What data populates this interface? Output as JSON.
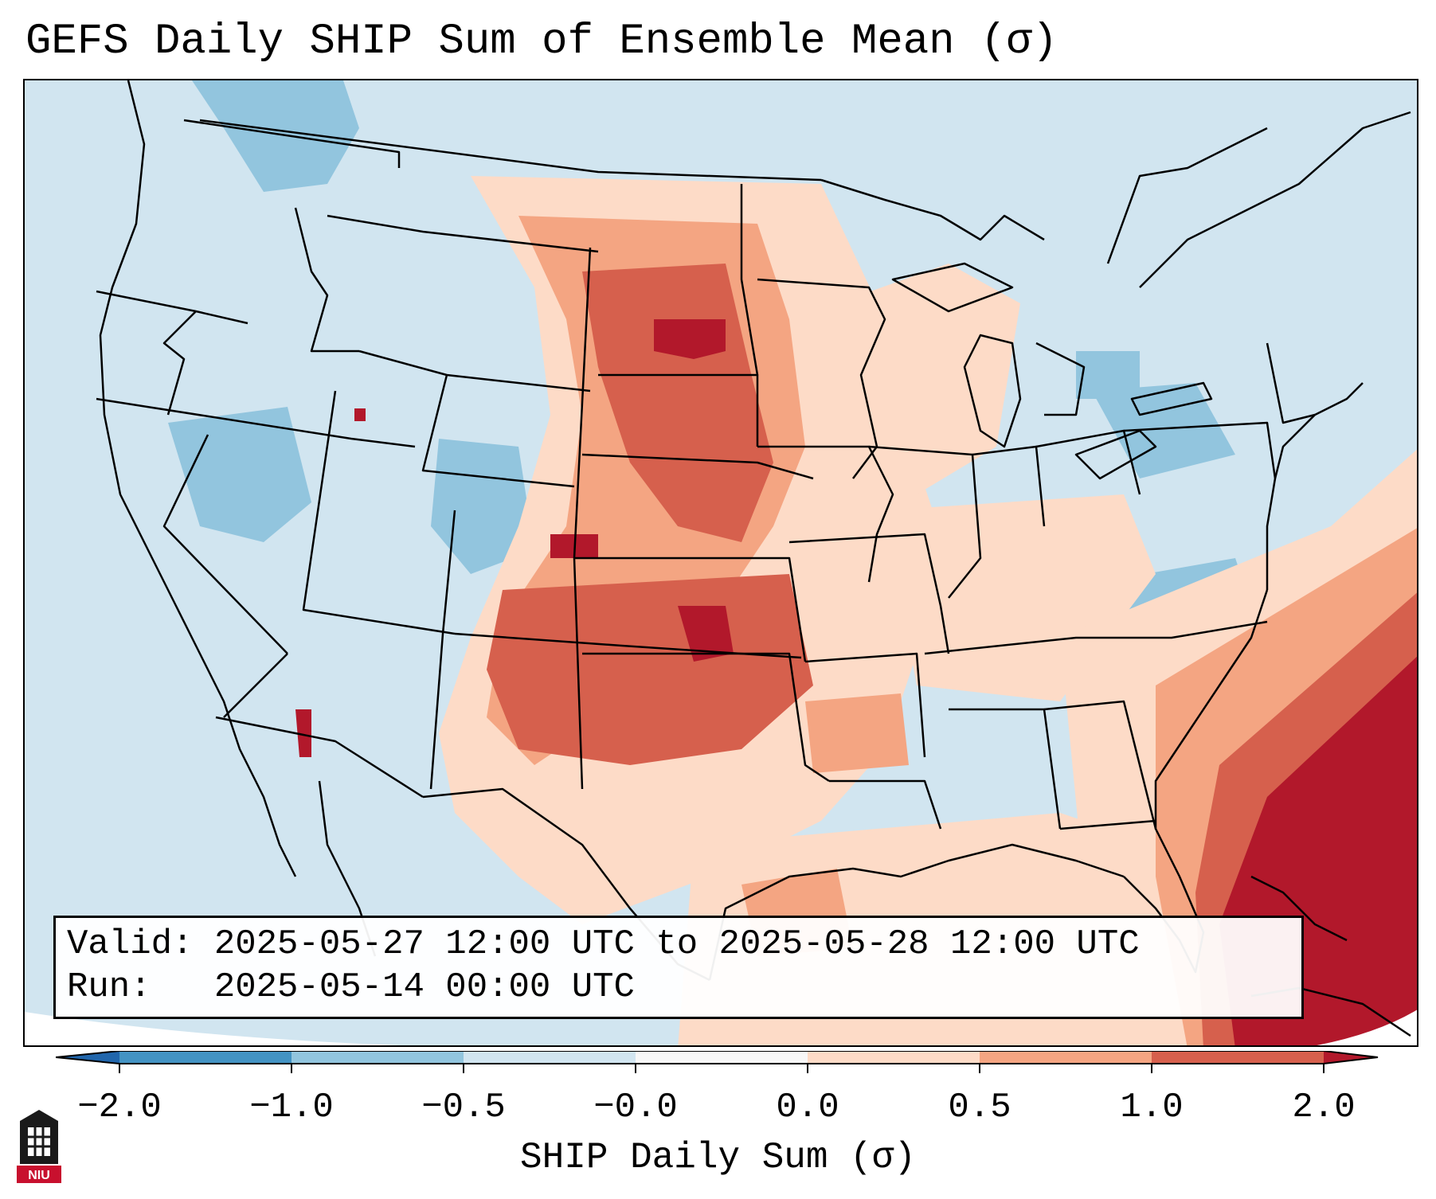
{
  "title": "GEFS Daily SHIP Sum of Ensemble Mean (σ)",
  "info": {
    "valid_label": "Valid:",
    "valid_value": "2025-05-27 12:00 UTC to 2025-05-28 12:00 UTC",
    "run_label": "Run:",
    "run_value": "2025-05-14 00:00 UTC"
  },
  "colorbar": {
    "label": "SHIP Daily Sum (σ)",
    "ticks": [
      "−2.0",
      "−1.0",
      "−0.5",
      "−0.0",
      "0.0",
      "0.5",
      "1.0",
      "2.0"
    ],
    "colors": {
      "below": "#2166ac",
      "n2_n1": "#4393c3",
      "n1_n05": "#92c5de",
      "n05_0": "#d1e5f0",
      "zero": "#f7f7f7",
      "p0_05": "#fddbc7",
      "p05_1": "#f4a582",
      "p1_2": "#d6604d",
      "above": "#b2182b"
    }
  },
  "map": {
    "region": "Continental United States",
    "background_color": "#d1e5f0",
    "border_color": "#000000"
  },
  "logo": {
    "text": "NIU",
    "color": "#c8102e"
  }
}
